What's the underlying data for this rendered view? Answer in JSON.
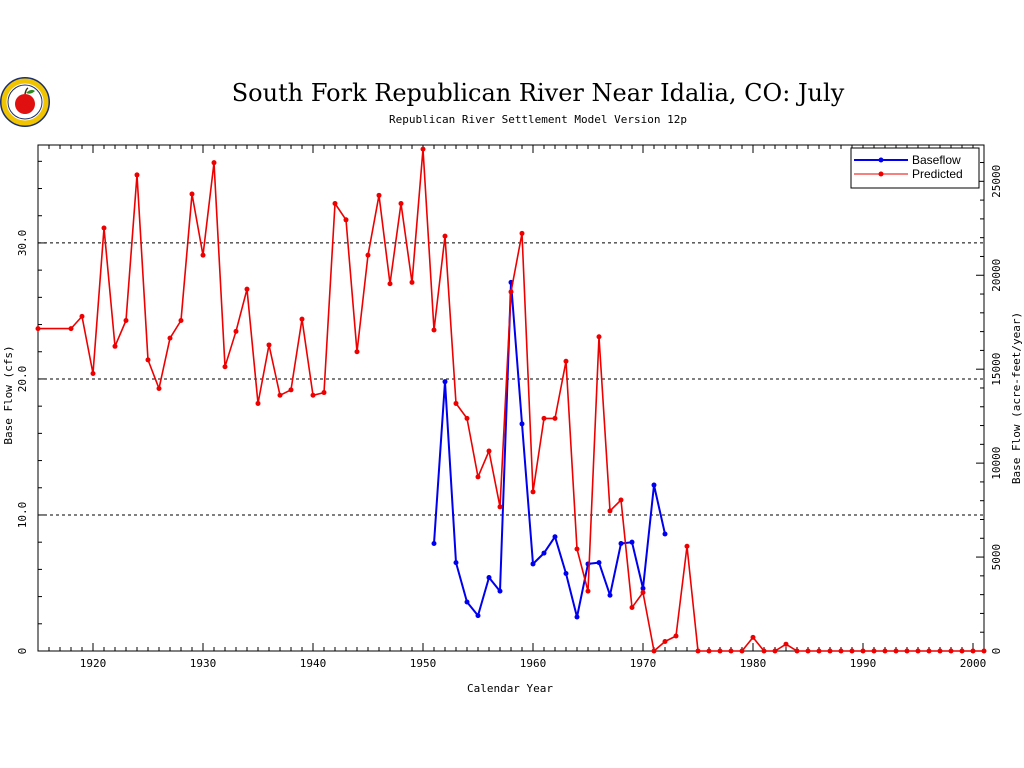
{
  "chart_data": {
    "type": "line",
    "title": "South Fork Republican River Near Idalia, CO: July",
    "subtitle": "Republican River Settlement Model Version 12p",
    "xlabel": "Calendar Year",
    "ylabel_left": "Base Flow (cfs)",
    "ylabel_right": "Base Flow (acre-feet/year)",
    "xlim": [
      1915,
      2001
    ],
    "ylim": [
      0,
      37.2
    ],
    "x_ticks": [
      1920,
      1930,
      1940,
      1950,
      1960,
      1970,
      1980,
      1990,
      2000
    ],
    "y_ticks_left": [
      {
        "value": 0,
        "label": "0"
      },
      {
        "value": 10,
        "label": "10.0"
      },
      {
        "value": 20,
        "label": "20.0"
      },
      {
        "value": 30,
        "label": "30.0"
      }
    ],
    "y_ticks_right": [
      0,
      5000,
      10000,
      15000,
      20000,
      25000
    ],
    "grid_lines_y": [
      10,
      20,
      30
    ],
    "legend_position": "top-right",
    "series": [
      {
        "name": "Baseflow",
        "color": "#0000ee",
        "x": [
          1951,
          1952,
          1953,
          1954,
          1955,
          1956,
          1957,
          1958,
          1959,
          1960,
          1961,
          1962,
          1963,
          1964,
          1965,
          1966,
          1967,
          1968,
          1969,
          1970,
          1971,
          1972
        ],
        "y": [
          7.9,
          19.8,
          6.5,
          3.6,
          2.6,
          5.4,
          4.4,
          27.1,
          16.7,
          6.4,
          7.2,
          8.4,
          5.7,
          2.5,
          6.4,
          6.5,
          4.1,
          7.9,
          8.0,
          4.6,
          12.2,
          8.6
        ]
      },
      {
        "name": "Predicted",
        "color": "#ee0000",
        "x": [
          1915,
          1918,
          1919,
          1920,
          1921,
          1922,
          1923,
          1924,
          1925,
          1926,
          1927,
          1928,
          1929,
          1930,
          1931,
          1932,
          1933,
          1934,
          1935,
          1936,
          1937,
          1938,
          1939,
          1940,
          1941,
          1942,
          1943,
          1944,
          1945,
          1946,
          1947,
          1948,
          1949,
          1950,
          1951,
          1952,
          1953,
          1954,
          1955,
          1956,
          1957,
          1958,
          1959,
          1960,
          1961,
          1962,
          1963,
          1964,
          1965,
          1966,
          1967,
          1968,
          1969,
          1970,
          1971,
          1972,
          1973,
          1974,
          1975,
          1976,
          1977,
          1978,
          1979,
          1980,
          1981,
          1982,
          1983,
          1984,
          1985,
          1986,
          1987,
          1988,
          1989,
          1990,
          1991,
          1992,
          1993,
          1994,
          1995,
          1996,
          1997,
          1998,
          1999,
          2000,
          2001
        ],
        "y": [
          23.7,
          23.7,
          24.6,
          20.4,
          31.1,
          22.4,
          24.3,
          35.0,
          21.4,
          19.3,
          23.0,
          24.3,
          33.6,
          29.1,
          35.9,
          20.9,
          23.5,
          26.6,
          18.2,
          22.5,
          18.8,
          19.2,
          24.4,
          18.8,
          19.0,
          32.9,
          31.7,
          22.0,
          29.1,
          33.5,
          27.0,
          32.9,
          27.1,
          36.9,
          23.6,
          30.5,
          18.2,
          17.1,
          12.8,
          14.7,
          10.6,
          26.4,
          30.7,
          11.7,
          17.1,
          17.1,
          21.3,
          7.5,
          4.4,
          23.1,
          10.3,
          11.1,
          3.2,
          4.3,
          0.0,
          0.7,
          1.1,
          7.7,
          0.0,
          0.0,
          0.0,
          0.0,
          0.0,
          1.0,
          0.0,
          0.0,
          0.5,
          0.0,
          0.0,
          0.0,
          0.0,
          0.0,
          0.0,
          0.0,
          0.0,
          0.0,
          0.0,
          0.0,
          0.0,
          0.0,
          0.0,
          0.0,
          0.0,
          0.0,
          0.0
        ]
      }
    ]
  },
  "logo": {
    "name": "apple-seal-logo"
  }
}
